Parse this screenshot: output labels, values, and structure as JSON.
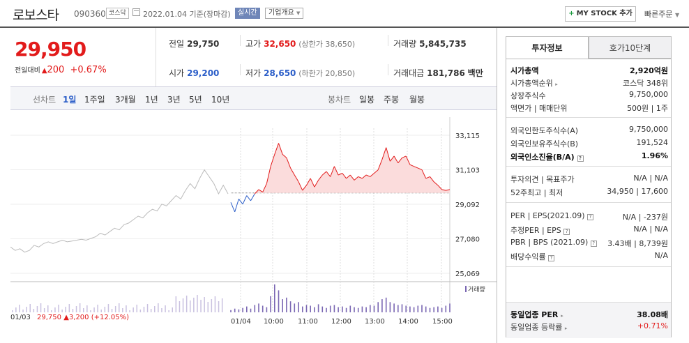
{
  "header": {
    "name": "로보스타",
    "code": "090360",
    "market": "코스닥",
    "date": "2022.01.04 기준(장마감)",
    "realtime": "실시간",
    "company_info": "기업개요",
    "mystock": "MY STOCK 추가",
    "quick_order": "빠른주문"
  },
  "price": {
    "current": "29,950",
    "change_label": "전일대비",
    "change_symbol": "▲",
    "change": "200",
    "change_pct": "+0.67%"
  },
  "info": {
    "prev_label": "전일",
    "prev": "29,750",
    "high_label": "고가",
    "high": "32,650",
    "upper": "(상한가 38,650)",
    "vol_label": "거래량",
    "vol": "5,845,735",
    "open_label": "시가",
    "open": "29,200",
    "low_label": "저가",
    "low": "28,650",
    "lower": "(하한가 20,850)",
    "amt_label": "거래대금",
    "amt": "181,786",
    "amt_unit": "백만"
  },
  "toolbar": {
    "line_label": "선차트",
    "periods": [
      "1일",
      "1주일",
      "3개월",
      "1년",
      "3년",
      "5년",
      "10년"
    ],
    "candle_label": "봉차트",
    "candles": [
      "일봉",
      "주봉",
      "월봉"
    ]
  },
  "chart_data": {
    "type": "line",
    "y_ticks": [
      "33,115",
      "31,103",
      "29,092",
      "27,080",
      "25,069"
    ],
    "ylim": [
      25069,
      33115
    ],
    "reference": 29750,
    "x_labels": [
      "01/04",
      "10:00",
      "11:00",
      "12:00",
      "13:00",
      "14:00",
      "15:00"
    ],
    "prev_day": {
      "date": "01/03",
      "close": "29,750",
      "symbol": "▲",
      "change": "3,200",
      "pct": "(+12.05%)"
    },
    "prev_series": [
      26600,
      26400,
      26500,
      26300,
      26400,
      26700,
      26600,
      26800,
      26900,
      26800,
      26900,
      27000,
      26900,
      26950,
      27000,
      27050,
      27000,
      27100,
      27200,
      27400,
      27300,
      27500,
      27700,
      27600,
      27900,
      28000,
      28200,
      28400,
      28300,
      28600,
      28800,
      28700,
      29100,
      29000,
      29300,
      29600,
      29400,
      29900,
      30300,
      30000,
      30600,
      31100,
      30700,
      30300,
      29700,
      30200,
      29700
    ],
    "intraday": [
      29200,
      28650,
      29400,
      29100,
      29600,
      29300,
      29700,
      29950,
      29800,
      30300,
      31300,
      32000,
      32650,
      32000,
      31800,
      31200,
      30800,
      30400,
      29900,
      30200,
      30600,
      30100,
      30500,
      30800,
      31000,
      30700,
      31300,
      30800,
      30900,
      30600,
      30800,
      30500,
      30700,
      30600,
      30800,
      30700,
      30900,
      31100,
      31700,
      32400,
      31600,
      31900,
      31500,
      31800,
      31900,
      31400,
      31300,
      31200,
      31100,
      30600,
      30700,
      30400,
      30200,
      29950,
      29900,
      29950
    ],
    "volume_legend": "거래량",
    "volume": [
      3,
      5,
      4,
      6,
      8,
      5,
      10,
      12,
      9,
      7,
      22,
      38,
      30,
      18,
      20,
      15,
      12,
      14,
      8,
      10,
      9,
      7,
      11,
      8,
      6,
      9,
      10,
      7,
      8,
      6,
      9,
      7,
      6,
      8,
      7,
      10,
      9,
      14,
      18,
      20,
      14,
      12,
      10,
      11,
      9,
      8,
      7,
      9,
      10,
      8,
      6,
      7,
      8,
      6,
      9,
      12
    ]
  },
  "tabs": {
    "invest": "투자정보",
    "hoga": "호가10단계"
  },
  "invest": {
    "mcap_label": "시가총액",
    "mcap": "2,920억원",
    "mcap_rank_label": "시가총액순위",
    "mcap_rank": "코스닥 348위",
    "shares_label": "상장주식수",
    "shares": "9,750,000",
    "face_label": "액면가 | 매매단위",
    "face": "500원 | 1주",
    "fl_label": "외국인한도주식수(A)",
    "fl": "9,750,000",
    "fh_label": "외국인보유주식수(B)",
    "fh": "191,524",
    "fr_label": "외국인소진율(B/A)",
    "fr": "1.96%",
    "op_label": "투자의견 | 목표주가",
    "op": "N/A | N/A",
    "w52_label": "52주최고 | 최저",
    "w52": "34,950 | 17,600",
    "per_label": "PER | EPS(2021.09)",
    "per": "N/A | -237원",
    "eper_label": "추정PER | EPS",
    "eper": "N/A | N/A",
    "pbr_label": "PBR | BPS (2021.09)",
    "pbr": "3.43배 | 8,739원",
    "div_label": "배당수익률",
    "div": "N/A",
    "ind_per_label": "동일업종 PER",
    "ind_per": "38.08배",
    "ind_rate_label": "동일업종 등락률",
    "ind_rate": "+0.71%"
  }
}
